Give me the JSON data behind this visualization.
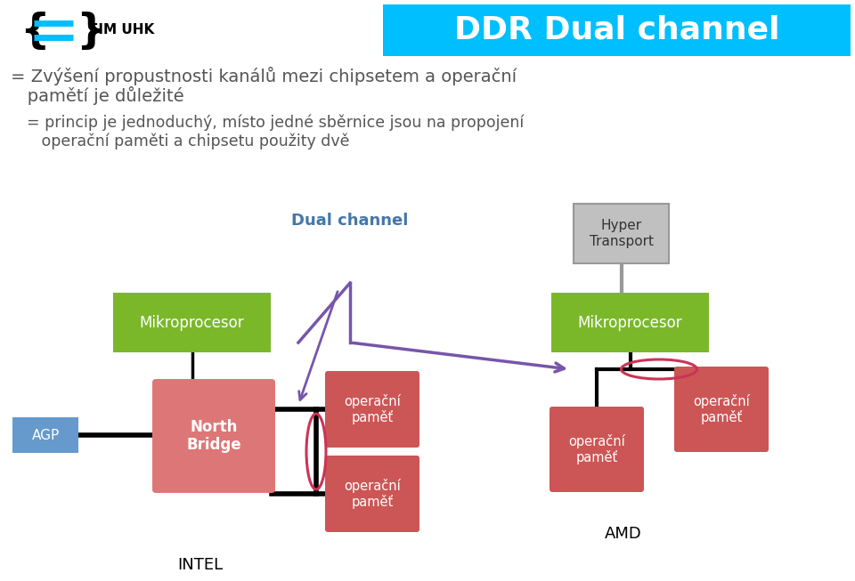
{
  "title": "DDR Dual channel",
  "title_bg": "#00BFFF",
  "title_color": "white",
  "title_fontsize": 26,
  "line1a": "= Zvýšení propustnosti kanálů mezi chipsetem a operační",
  "line1b": "   pamětí je důležité",
  "line2a": "= princip je jednoduchý, místo jedné sběrnice jsou na propojení",
  "line2b": "   operační paměti a chipsetu použity dvě",
  "label_dual": "Dual channel",
  "label_hyper": "Hyper\nTransport",
  "label_mikro1": "Mikroprocesor",
  "label_mikro2": "Mikroprocesor",
  "label_north": "North\nBridge",
  "label_agp": "AGP",
  "label_op1": "operační\npaměť",
  "label_op2": "operační\npaměť",
  "label_op3": "operační\npaměť",
  "label_op4": "operační\npaměť",
  "label_intel": "INTEL",
  "label_amd": "AMD",
  "color_green": "#7AB82A",
  "color_red": "#CC5555",
  "color_red_light": "#DD7777",
  "color_blue": "#6699CC",
  "color_gray_box": "#C0C0C0",
  "color_gray_edge": "#999999",
  "color_purple": "#7755AA",
  "color_oval": "#CC3355",
  "color_text_header": "#555555",
  "color_text_blue": "#4477AA",
  "bg_color": "white"
}
